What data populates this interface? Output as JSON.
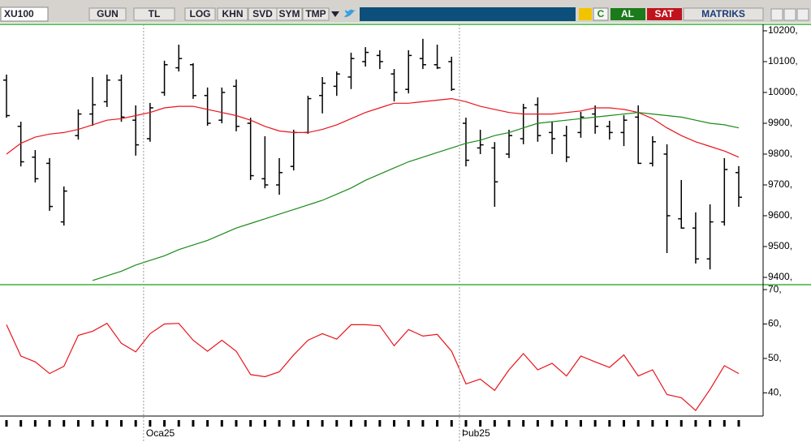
{
  "toolbar": {
    "symbol": "XU100",
    "buttons": [
      "GUN",
      "TL",
      "LOG",
      "KHN",
      "SVD",
      "SYM",
      "TMP"
    ],
    "refresh": "C",
    "buy": "AL",
    "sell": "SAT",
    "brand": "MATRIKS"
  },
  "chart_data": [
    {
      "type": "ohlc",
      "categories": [
        null,
        null,
        null,
        null,
        null,
        null,
        null,
        null,
        null,
        null,
        "Oca25",
        null,
        null,
        null,
        null,
        null,
        null,
        null,
        null,
        null,
        null,
        null,
        null,
        null,
        null,
        null,
        null,
        null,
        null,
        null,
        null,
        null,
        "Þub25",
        null,
        null,
        null,
        null,
        null,
        null,
        null,
        null,
        null,
        null,
        null,
        null,
        null,
        null,
        null,
        null,
        null,
        null,
        null
      ],
      "open": [
        10040,
        9890,
        9790,
        9770,
        9580,
        9860,
        9930,
        9970,
        10040,
        9910,
        9850,
        10000,
        10080,
        10090,
        9990,
        9910,
        10020,
        9900,
        9720,
        9700,
        9760,
        9870,
        9990,
        10020,
        10050,
        10100,
        10120,
        10060,
        10010,
        10110,
        10090,
        10100,
        9900,
        9820,
        9820,
        9800,
        9850,
        9960,
        9870,
        9860,
        9870,
        9930,
        9890,
        9870,
        9920,
        9770,
        9800,
        9590,
        9560,
        9460,
        9580,
        9740
      ],
      "high": [
        10058,
        9905,
        9813,
        9787,
        9695,
        9945,
        10050,
        10058,
        10058,
        9958,
        9966,
        10103,
        10155,
        10095,
        10016,
        10016,
        10042,
        9918,
        9858,
        9787,
        9879,
        9989,
        10050,
        10068,
        10129,
        10147,
        10137,
        10076,
        10137,
        10174,
        10155,
        10116,
        9918,
        9879,
        9839,
        9879,
        9963,
        9984,
        9905,
        9892,
        9937,
        9958,
        9908,
        9926,
        9958,
        9858,
        9832,
        9716,
        9611,
        9637,
        9787,
        9761
      ],
      "low": [
        9918,
        9760,
        9708,
        9616,
        9568,
        9847,
        9892,
        9953,
        9905,
        9795,
        9840,
        9989,
        10068,
        9979,
        9892,
        9900,
        9874,
        9716,
        9689,
        9668,
        9747,
        9866,
        9932,
        9989,
        10011,
        10084,
        10076,
        9971,
        9997,
        10076,
        10076,
        10005,
        9760,
        9800,
        9629,
        9787,
        9832,
        9840,
        9800,
        9774,
        9853,
        9866,
        9847,
        9826,
        9768,
        9760,
        9479,
        9558,
        9445,
        9426,
        9568,
        9629
      ],
      "close": [
        9925,
        9775,
        9720,
        9630,
        9680,
        9930,
        9960,
        10040,
        9920,
        9830,
        9950,
        10090,
        10110,
        9990,
        9900,
        10000,
        9890,
        9730,
        9700,
        9740,
        9870,
        9980,
        10030,
        10060,
        10110,
        10130,
        10100,
        10000,
        10120,
        10090,
        10080,
        10010,
        9780,
        9830,
        9710,
        9860,
        9950,
        9860,
        9850,
        9790,
        9920,
        9890,
        9870,
        9910,
        9770,
        9840,
        9600,
        9560,
        9460,
        9580,
        9750,
        9660
      ],
      "color": "#000000",
      "series": [
        {
          "color": "#e8141c",
          "values": [
            9800,
            9835,
            9855,
            9865,
            9870,
            9880,
            9895,
            9910,
            9915,
            9925,
            9935,
            9950,
            9955,
            9955,
            9945,
            9935,
            9925,
            9910,
            9890,
            9875,
            9870,
            9870,
            9880,
            9895,
            9915,
            9935,
            9950,
            9965,
            9965,
            9970,
            9975,
            9980,
            9970,
            9955,
            9945,
            9935,
            9930,
            9930,
            9930,
            9935,
            9940,
            9950,
            9950,
            9945,
            9935,
            9915,
            9885,
            9860,
            9840,
            9825,
            9810,
            9790
          ]
        },
        {
          "color": "#1a8a1a",
          "values": [
            null,
            null,
            null,
            null,
            null,
            null,
            9390,
            9405,
            9420,
            9440,
            9455,
            9470,
            9490,
            9505,
            9520,
            9540,
            9560,
            9575,
            9590,
            9605,
            9620,
            9635,
            9650,
            9670,
            9690,
            9715,
            9735,
            9755,
            9775,
            9790,
            9805,
            9820,
            9835,
            9845,
            9860,
            9870,
            9885,
            9900,
            9905,
            9910,
            9915,
            9920,
            9925,
            9930,
            9935,
            9930,
            9925,
            9920,
            9910,
            9900,
            9895,
            9885
          ]
        }
      ],
      "ylim": [
        9379,
        10221
      ],
      "yticks": [
        {
          "value": 9400,
          "label": "9400,"
        },
        {
          "value": 9500,
          "label": "9500,"
        },
        {
          "value": 9600,
          "label": "9600,"
        },
        {
          "value": 9700,
          "label": "9700,"
        },
        {
          "value": 9800,
          "label": "9800,"
        },
        {
          "value": 9900,
          "label": "9900,"
        },
        {
          "value": 10000,
          "label": "10000,"
        },
        {
          "value": 10100,
          "label": "10100,"
        },
        {
          "value": 10200,
          "label": "10200,"
        }
      ]
    },
    {
      "type": "line",
      "series": [
        {
          "color": "#e8141c",
          "values": [
            59.8,
            50.7,
            49,
            45.6,
            47.7,
            56.7,
            57.9,
            60.2,
            54.4,
            51.9,
            57.2,
            60,
            60.2,
            55.3,
            52.1,
            55.3,
            52.1,
            45.3,
            44.7,
            46.1,
            51,
            55.3,
            57.2,
            55.6,
            59.8,
            59.8,
            59.5,
            53.7,
            58.4,
            56.5,
            57,
            52.1,
            42.6,
            44,
            40.7,
            46.7,
            51.4,
            46.7,
            48.6,
            44.9,
            50.7,
            49,
            47.4,
            51,
            44.9,
            46.7,
            39.5,
            38.6,
            34.9,
            41,
            47.9,
            45.6
          ]
        }
      ],
      "ylim": [
        33.5,
        71.2
      ],
      "yticks": [
        {
          "value": 40,
          "label": "40,"
        },
        {
          "value": 50,
          "label": "50,"
        },
        {
          "value": 60,
          "label": "60,"
        },
        {
          "value": 70,
          "label": "70,"
        }
      ]
    }
  ]
}
